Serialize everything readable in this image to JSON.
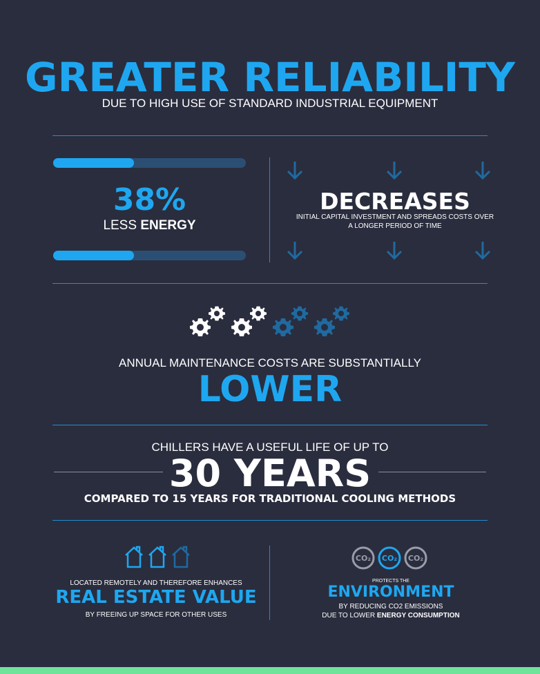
{
  "header": {
    "title": "GREATER RELIABILITY",
    "subtitle": "DUE TO HIGH USE OF STANDARD INDUSTRIAL EQUIPMENT"
  },
  "energy": {
    "percent": "38%",
    "label_prefix": "LESS ",
    "label_bold": "ENERGY",
    "bar_fill_fraction": 0.38
  },
  "decreases": {
    "title": "DECREASES",
    "line1": "INITIAL CAPITAL INVESTMENT AND SPREADS COSTS OVER",
    "line2": "A LONGER PERIOD OF TIME"
  },
  "maintenance": {
    "line": "ANNUAL MAINTENANCE COSTS ARE SUBSTANTIALLY",
    "big": "LOWER"
  },
  "chillers": {
    "line": "CHILLERS HAVE A USEFUL LIFE OF UP TO",
    "big": "30 YEARS",
    "compare": "COMPARED TO 15 YEARS FOR TRADITIONAL COOLING METHODS"
  },
  "real_estate": {
    "top": "LOCATED REMOTELY AND THEREFORE ENHANCES",
    "big": "REAL ESTATE VALUE",
    "bottom": "BY FREEING UP SPACE FOR OTHER USES"
  },
  "environment": {
    "co2_label": "CO2",
    "top": "PROTECTS THE",
    "big": "ENVIRONMENT",
    "line1": "BY REDUCING CO2 EMISSIONS",
    "line2_prefix": "DUE TO LOWER ",
    "line2_bold": "ENERGY CONSUMPTION"
  },
  "colors": {
    "background": "#2a2d3e",
    "accent_blue": "#1ea7f0",
    "dark_blue": "#1f6aa0",
    "bar_track": "#2b4f73",
    "bottom_strip": "#6ee39a"
  }
}
